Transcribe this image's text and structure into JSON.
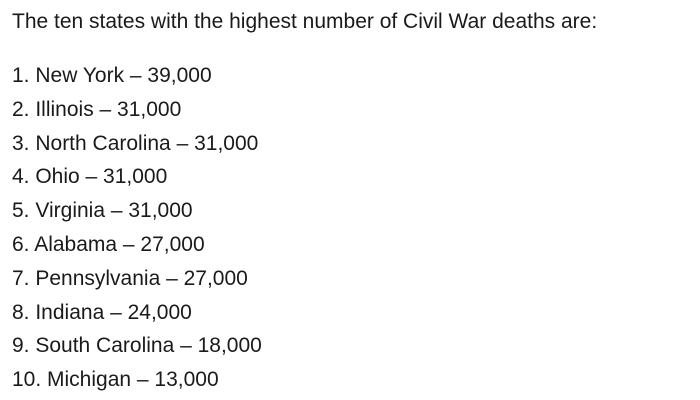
{
  "intro": "The ten states with the highest number of Civil War deaths are:",
  "items": [
    "1. New York – 39,000",
    "2. Illinois – 31,000",
    "3. North Carolina – 31,000",
    "4. Ohio – 31,000",
    "5. Virginia – 31,000",
    "6. Alabama – 27,000",
    "7. Pennsylvania – 27,000",
    "8. Indiana – 24,000",
    "9. South Carolina – 18,000",
    "10. Michigan – 13,000"
  ]
}
